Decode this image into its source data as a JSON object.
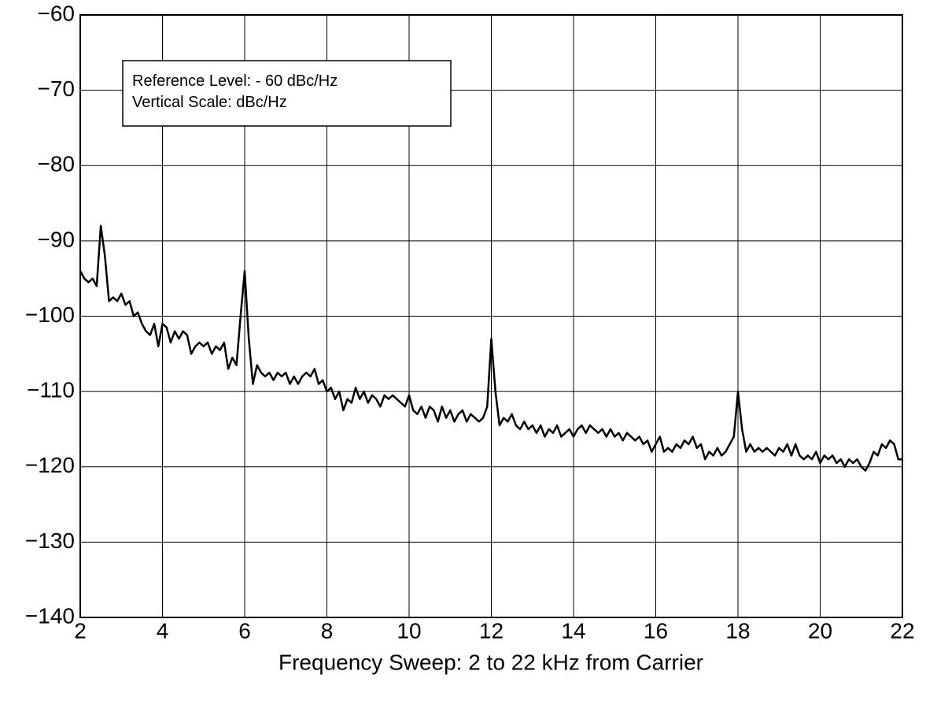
{
  "chart_data": {
    "type": "line",
    "xlabel": "Frequency Sweep: 2 to 22 kHz from Carrier",
    "annotations": [
      "Reference Level: - 60 dBc/Hz",
      "Vertical Scale: dBc/Hz"
    ],
    "xlim": [
      2,
      22
    ],
    "xticks": [
      2,
      4,
      6,
      8,
      10,
      12,
      14,
      16,
      18,
      20,
      22
    ],
    "ylim": [
      -140,
      -60
    ],
    "yticks": [
      {
        "value": -60,
        "label": "−60"
      },
      {
        "value": -70,
        "label": "−70"
      },
      {
        "value": -80,
        "label": "−80"
      },
      {
        "value": -90,
        "label": "−90"
      },
      {
        "value": -100,
        "label": "−100"
      },
      {
        "value": -110,
        "label": "−110"
      },
      {
        "value": -120,
        "label": "−120"
      },
      {
        "value": -130,
        "label": "−130"
      },
      {
        "value": -140,
        "label": "−140"
      }
    ],
    "grid": true,
    "x": [
      2,
      2.1,
      2.2,
      2.3,
      2.4,
      2.5,
      2.6,
      2.7,
      2.8,
      2.9,
      3,
      3.1,
      3.2,
      3.3,
      3.4,
      3.5,
      3.6,
      3.7,
      3.8,
      3.9,
      4,
      4.1,
      4.2,
      4.3,
      4.4,
      4.5,
      4.6,
      4.7,
      4.8,
      4.9,
      5,
      5.1,
      5.2,
      5.3,
      5.4,
      5.5,
      5.6,
      5.7,
      5.8,
      5.9,
      6,
      6.1,
      6.2,
      6.3,
      6.4,
      6.5,
      6.6,
      6.7,
      6.8,
      6.9,
      7,
      7.1,
      7.2,
      7.3,
      7.4,
      7.5,
      7.6,
      7.7,
      7.8,
      7.9,
      8,
      8.1,
      8.2,
      8.3,
      8.4,
      8.5,
      8.6,
      8.7,
      8.8,
      8.9,
      9,
      9.1,
      9.2,
      9.3,
      9.4,
      9.5,
      9.6,
      9.7,
      9.8,
      9.9,
      10,
      10.1,
      10.2,
      10.3,
      10.4,
      10.5,
      10.6,
      10.7,
      10.8,
      10.9,
      11,
      11.1,
      11.2,
      11.3,
      11.4,
      11.5,
      11.6,
      11.7,
      11.8,
      11.9,
      12,
      12.1,
      12.2,
      12.3,
      12.4,
      12.5,
      12.6,
      12.7,
      12.8,
      12.9,
      13,
      13.1,
      13.2,
      13.3,
      13.4,
      13.5,
      13.6,
      13.7,
      13.8,
      13.9,
      14,
      14.1,
      14.2,
      14.3,
      14.4,
      14.5,
      14.6,
      14.7,
      14.8,
      14.9,
      15,
      15.1,
      15.2,
      15.3,
      15.4,
      15.5,
      15.6,
      15.7,
      15.8,
      15.9,
      16,
      16.1,
      16.2,
      16.3,
      16.4,
      16.5,
      16.6,
      16.7,
      16.8,
      16.9,
      17,
      17.1,
      17.2,
      17.3,
      17.4,
      17.5,
      17.6,
      17.7,
      17.8,
      17.9,
      18,
      18.1,
      18.2,
      18.3,
      18.4,
      18.5,
      18.6,
      18.7,
      18.8,
      18.9,
      19,
      19.1,
      19.2,
      19.3,
      19.4,
      19.5,
      19.6,
      19.7,
      19.8,
      19.9,
      20,
      20.1,
      20.2,
      20.3,
      20.4,
      20.5,
      20.6,
      20.7,
      20.8,
      20.9,
      21,
      21.1,
      21.2,
      21.3,
      21.4,
      21.5,
      21.6,
      21.7,
      21.8,
      21.9,
      22
    ],
    "series": [
      {
        "color": "#000000",
        "values": [
          -94,
          -95,
          -95.5,
          -95,
          -96,
          -88,
          -92,
          -98,
          -97.5,
          -98,
          -97,
          -98.5,
          -98,
          -100,
          -99.5,
          -101,
          -102,
          -102.5,
          -101,
          -104,
          -101,
          -101.5,
          -103.5,
          -102,
          -103,
          -102,
          -102.5,
          -105,
          -104,
          -103.5,
          -104,
          -103.5,
          -105,
          -104,
          -104.5,
          -103.5,
          -107,
          -105.5,
          -106.5,
          -100,
          -94,
          -103,
          -109,
          -106.5,
          -107.5,
          -108,
          -107.5,
          -108.5,
          -107.5,
          -108,
          -107.5,
          -109,
          -108,
          -109,
          -108,
          -107.5,
          -108,
          -107,
          -109,
          -108.5,
          -110,
          -109.5,
          -111,
          -110,
          -112.5,
          -111,
          -111.5,
          -109.5,
          -111,
          -110,
          -111.5,
          -110.5,
          -111,
          -112,
          -110.5,
          -111,
          -110.5,
          -111,
          -111.5,
          -112,
          -110.5,
          -112.5,
          -113,
          -112,
          -113.5,
          -112,
          -112.5,
          -114,
          -112,
          -113.5,
          -112.5,
          -114,
          -113,
          -112.5,
          -114,
          -113,
          -113.5,
          -114,
          -113.5,
          -112,
          -103,
          -110,
          -114.5,
          -113.5,
          -114,
          -113,
          -114.5,
          -115,
          -114,
          -115,
          -114.5,
          -115.5,
          -114.5,
          -116,
          -115,
          -115.5,
          -114.5,
          -116,
          -115.5,
          -115,
          -116,
          -115,
          -114.5,
          -115.5,
          -114.5,
          -115,
          -115.5,
          -115,
          -116,
          -115,
          -116,
          -115.5,
          -116.5,
          -115.5,
          -116,
          -116.5,
          -116,
          -117,
          -116.5,
          -118,
          -117,
          -116,
          -118,
          -117.5,
          -118,
          -117,
          -117.5,
          -116.5,
          -117,
          -116,
          -117.5,
          -117,
          -119,
          -118,
          -118.5,
          -117.5,
          -118.5,
          -118,
          -117,
          -116,
          -110,
          -115,
          -118,
          -117,
          -118,
          -117.5,
          -118,
          -117.5,
          -118,
          -118.5,
          -117.5,
          -118,
          -117,
          -118.5,
          -117,
          -118.5,
          -119,
          -118.5,
          -119,
          -118,
          -119.5,
          -118.5,
          -119,
          -118.5,
          -119.5,
          -119,
          -120,
          -119,
          -119.5,
          -119,
          -120,
          -120.5,
          -119.5,
          -118,
          -118.5,
          -117,
          -117.5,
          -116.5,
          -117,
          -119,
          -119
        ]
      }
    ]
  }
}
